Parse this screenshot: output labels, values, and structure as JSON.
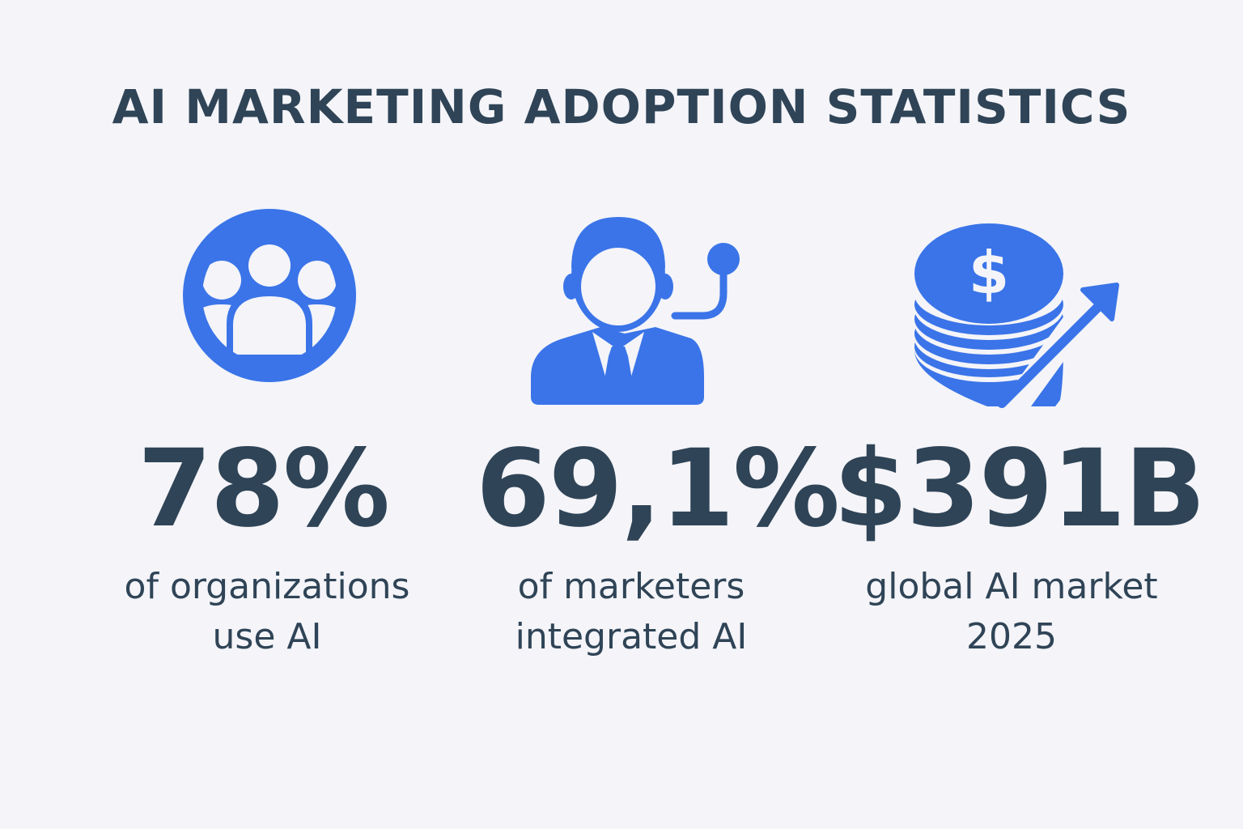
{
  "title": "AI MARKETING ADOPTION STATISTICS",
  "accent_color": "#3a74e8",
  "text_color": "#2f4456",
  "stats": [
    {
      "icon": "people-group-icon",
      "value": "78%",
      "label_lines": [
        "of organizations",
        "use AI"
      ]
    },
    {
      "icon": "businessman-headset-icon",
      "value": "69,1%",
      "label_lines": [
        "of marketers",
        "integrated AI"
      ]
    },
    {
      "icon": "coin-stack-growth-icon",
      "value": "$391B",
      "label_lines": [
        "global AI market",
        "2025"
      ]
    }
  ]
}
